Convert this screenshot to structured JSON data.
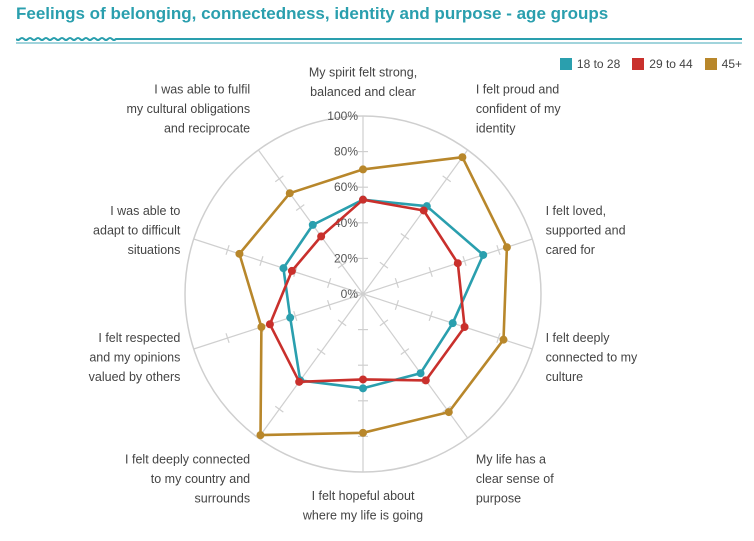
{
  "title": "Feelings of belonging, connectedness, identity and purpose - age groups",
  "colors": {
    "title": "#2a9fae",
    "grid": "#cfcfcf"
  },
  "chart_data": {
    "type": "radar",
    "title": "Feelings of belonging, connectedness, identity and purpose - age groups",
    "axes": [
      "My spirit felt strong, balanced and clear",
      "I felt proud and confident of my identity",
      "I felt loved, supported and cared for",
      "I felt deeply connected to my culture",
      "My life has a clear sense of purpose",
      "I felt hopeful about where my life is going",
      "I felt deeply connected to my country and surrounds",
      "I felt respected and my opinions valued by others",
      "I was able to adapt to difficult situations",
      "I was able to fulfil my cultural obligations and reciprocate"
    ],
    "axis_label_lines": [
      [
        "My spirit felt strong,",
        "balanced and clear"
      ],
      [
        "I felt proud and",
        "confident of my",
        "identity"
      ],
      [
        "I felt loved,",
        "supported and",
        "cared for"
      ],
      [
        "I felt deeply",
        "connected to my",
        "culture"
      ],
      [
        "My life has a",
        "clear sense of",
        "purpose"
      ],
      [
        "I felt hopeful about",
        "where my life is going"
      ],
      [
        "I felt deeply connected",
        "to my country and",
        "surrounds"
      ],
      [
        "I felt respected",
        "and my opinions",
        "valued by others"
      ],
      [
        "I was able to",
        "adapt to difficult",
        "situations"
      ],
      [
        "I was able to fulfil",
        "my cultural obligations",
        "and reciprocate"
      ]
    ],
    "tick_labels": [
      "0%",
      "20%",
      "40%",
      "60%",
      "80%",
      "100%"
    ],
    "rlim": [
      0,
      100
    ],
    "legend_position": "top-right",
    "series": [
      {
        "name": "18 to 28",
        "color": "#2a9fae",
        "values": [
          53,
          61,
          71,
          53,
          55,
          53,
          60,
          43,
          47,
          48
        ]
      },
      {
        "name": "29 to 44",
        "color": "#c9302c",
        "values": [
          53,
          58,
          56,
          60,
          60,
          48,
          61,
          55,
          42,
          40
        ]
      },
      {
        "name": "45+",
        "color": "#b8872b",
        "values": [
          70,
          95,
          85,
          83,
          82,
          78,
          98,
          60,
          73,
          70
        ]
      }
    ]
  }
}
